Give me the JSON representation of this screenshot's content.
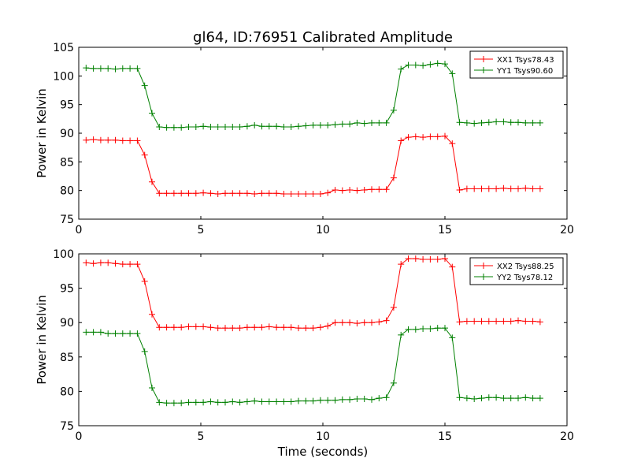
{
  "figure": {
    "title": "gl64, ID:76951 Calibrated Amplitude",
    "xlabel": "Time (seconds)"
  },
  "chart_data": [
    {
      "type": "line",
      "title": "gl64, ID:76951 Calibrated Amplitude",
      "xlabel": "",
      "ylabel": "Power in Kelvin",
      "xlim": [
        0,
        20
      ],
      "ylim": [
        75,
        105
      ],
      "xticks": [
        0,
        5,
        10,
        15,
        20
      ],
      "yticks": [
        75,
        80,
        85,
        90,
        95,
        100,
        105
      ],
      "grid": false,
      "legend": "top-right",
      "series": [
        {
          "name": "XX1 Tsys78.43",
          "color": "#ff0000",
          "x": [
            0.3,
            0.6,
            0.9,
            1.2,
            1.5,
            1.8,
            2.1,
            2.4,
            2.7,
            3.0,
            3.3,
            3.6,
            3.9,
            4.2,
            4.5,
            4.8,
            5.1,
            5.4,
            5.7,
            6.0,
            6.3,
            6.6,
            6.9,
            7.2,
            7.5,
            7.8,
            8.1,
            8.4,
            8.7,
            9.0,
            9.3,
            9.6,
            9.9,
            10.2,
            10.5,
            10.8,
            11.1,
            11.4,
            11.7,
            12.0,
            12.3,
            12.6,
            12.9,
            13.2,
            13.5,
            13.8,
            14.1,
            14.4,
            14.7,
            15.0,
            15.3,
            15.6,
            15.9,
            16.2,
            16.5,
            16.8,
            17.1,
            17.4,
            17.7,
            18.0,
            18.3,
            18.6,
            18.9
          ],
          "values": [
            88.8,
            88.9,
            88.8,
            88.8,
            88.8,
            88.7,
            88.7,
            88.7,
            86.2,
            81.5,
            79.5,
            79.5,
            79.5,
            79.5,
            79.5,
            79.5,
            79.6,
            79.5,
            79.4,
            79.5,
            79.5,
            79.5,
            79.5,
            79.4,
            79.5,
            79.5,
            79.5,
            79.4,
            79.4,
            79.4,
            79.4,
            79.4,
            79.4,
            79.6,
            80.1,
            80.0,
            80.1,
            80.0,
            80.1,
            80.2,
            80.2,
            80.2,
            82.2,
            88.7,
            89.3,
            89.4,
            89.3,
            89.4,
            89.4,
            89.5,
            88.2,
            80.1,
            80.3,
            80.3,
            80.3,
            80.3,
            80.3,
            80.4,
            80.3,
            80.3,
            80.4,
            80.3,
            80.3
          ]
        },
        {
          "name": "YY1 Tsys90.60",
          "color": "#008000",
          "x": [
            0.3,
            0.6,
            0.9,
            1.2,
            1.5,
            1.8,
            2.1,
            2.4,
            2.7,
            3.0,
            3.3,
            3.6,
            3.9,
            4.2,
            4.5,
            4.8,
            5.1,
            5.4,
            5.7,
            6.0,
            6.3,
            6.6,
            6.9,
            7.2,
            7.5,
            7.8,
            8.1,
            8.4,
            8.7,
            9.0,
            9.3,
            9.6,
            9.9,
            10.2,
            10.5,
            10.8,
            11.1,
            11.4,
            11.7,
            12.0,
            12.3,
            12.6,
            12.9,
            13.2,
            13.5,
            13.8,
            14.1,
            14.4,
            14.7,
            15.0,
            15.3,
            15.6,
            15.9,
            16.2,
            16.5,
            16.8,
            17.1,
            17.4,
            17.7,
            18.0,
            18.3,
            18.6,
            18.9
          ],
          "values": [
            101.4,
            101.3,
            101.3,
            101.3,
            101.2,
            101.3,
            101.3,
            101.3,
            98.3,
            93.5,
            91.1,
            91.0,
            91.0,
            91.0,
            91.1,
            91.1,
            91.2,
            91.1,
            91.1,
            91.1,
            91.1,
            91.1,
            91.2,
            91.4,
            91.2,
            91.2,
            91.2,
            91.1,
            91.1,
            91.2,
            91.3,
            91.4,
            91.4,
            91.4,
            91.5,
            91.6,
            91.6,
            91.8,
            91.7,
            91.8,
            91.8,
            91.8,
            94.0,
            101.2,
            101.9,
            101.9,
            101.8,
            102.0,
            102.2,
            102.1,
            100.4,
            91.9,
            91.8,
            91.7,
            91.8,
            91.9,
            92.0,
            92.0,
            91.9,
            91.9,
            91.8,
            91.8,
            91.8
          ]
        }
      ]
    },
    {
      "type": "line",
      "title": "",
      "xlabel": "Time (seconds)",
      "ylabel": "Power in Kelvin",
      "xlim": [
        0,
        20
      ],
      "ylim": [
        75,
        100
      ],
      "xticks": [
        0,
        5,
        10,
        15,
        20
      ],
      "yticks": [
        75,
        80,
        85,
        90,
        95,
        100
      ],
      "grid": false,
      "legend": "top-right",
      "series": [
        {
          "name": "XX2 Tsys88.25",
          "color": "#ff0000",
          "x": [
            0.3,
            0.6,
            0.9,
            1.2,
            1.5,
            1.8,
            2.1,
            2.4,
            2.7,
            3.0,
            3.3,
            3.6,
            3.9,
            4.2,
            4.5,
            4.8,
            5.1,
            5.4,
            5.7,
            6.0,
            6.3,
            6.6,
            6.9,
            7.2,
            7.5,
            7.8,
            8.1,
            8.4,
            8.7,
            9.0,
            9.3,
            9.6,
            9.9,
            10.2,
            10.5,
            10.8,
            11.1,
            11.4,
            11.7,
            12.0,
            12.3,
            12.6,
            12.9,
            13.2,
            13.5,
            13.8,
            14.1,
            14.4,
            14.7,
            15.0,
            15.3,
            15.6,
            15.9,
            16.2,
            16.5,
            16.8,
            17.1,
            17.4,
            17.7,
            18.0,
            18.3,
            18.6,
            18.9
          ],
          "values": [
            98.7,
            98.6,
            98.7,
            98.7,
            98.6,
            98.5,
            98.5,
            98.5,
            96.0,
            91.2,
            89.3,
            89.3,
            89.3,
            89.3,
            89.4,
            89.4,
            89.4,
            89.3,
            89.2,
            89.2,
            89.2,
            89.2,
            89.3,
            89.3,
            89.3,
            89.4,
            89.3,
            89.3,
            89.3,
            89.2,
            89.2,
            89.2,
            89.3,
            89.5,
            90.0,
            90.0,
            90.0,
            89.9,
            90.0,
            90.0,
            90.1,
            90.3,
            92.2,
            98.5,
            99.3,
            99.3,
            99.2,
            99.2,
            99.2,
            99.3,
            98.1,
            90.1,
            90.2,
            90.2,
            90.2,
            90.2,
            90.2,
            90.2,
            90.2,
            90.3,
            90.2,
            90.2,
            90.1
          ]
        },
        {
          "name": "YY2 Tsys78.12",
          "color": "#008000",
          "x": [
            0.3,
            0.6,
            0.9,
            1.2,
            1.5,
            1.8,
            2.1,
            2.4,
            2.7,
            3.0,
            3.3,
            3.6,
            3.9,
            4.2,
            4.5,
            4.8,
            5.1,
            5.4,
            5.7,
            6.0,
            6.3,
            6.6,
            6.9,
            7.2,
            7.5,
            7.8,
            8.1,
            8.4,
            8.7,
            9.0,
            9.3,
            9.6,
            9.9,
            10.2,
            10.5,
            10.8,
            11.1,
            11.4,
            11.7,
            12.0,
            12.3,
            12.6,
            12.9,
            13.2,
            13.5,
            13.8,
            14.1,
            14.4,
            14.7,
            15.0,
            15.3,
            15.6,
            15.9,
            16.2,
            16.5,
            16.8,
            17.1,
            17.4,
            17.7,
            18.0,
            18.3,
            18.6,
            18.9
          ],
          "values": [
            88.6,
            88.6,
            88.6,
            88.4,
            88.4,
            88.4,
            88.4,
            88.4,
            85.8,
            80.5,
            78.4,
            78.3,
            78.3,
            78.3,
            78.4,
            78.4,
            78.4,
            78.5,
            78.4,
            78.4,
            78.5,
            78.4,
            78.5,
            78.6,
            78.5,
            78.5,
            78.5,
            78.5,
            78.5,
            78.6,
            78.6,
            78.6,
            78.7,
            78.7,
            78.7,
            78.8,
            78.8,
            78.9,
            78.9,
            78.8,
            79.0,
            79.1,
            81.2,
            88.2,
            89.0,
            89.0,
            89.1,
            89.1,
            89.2,
            89.2,
            87.8,
            79.1,
            79.0,
            78.9,
            79.0,
            79.1,
            79.1,
            79.0,
            79.0,
            79.0,
            79.1,
            79.0,
            79.0
          ]
        }
      ]
    }
  ]
}
